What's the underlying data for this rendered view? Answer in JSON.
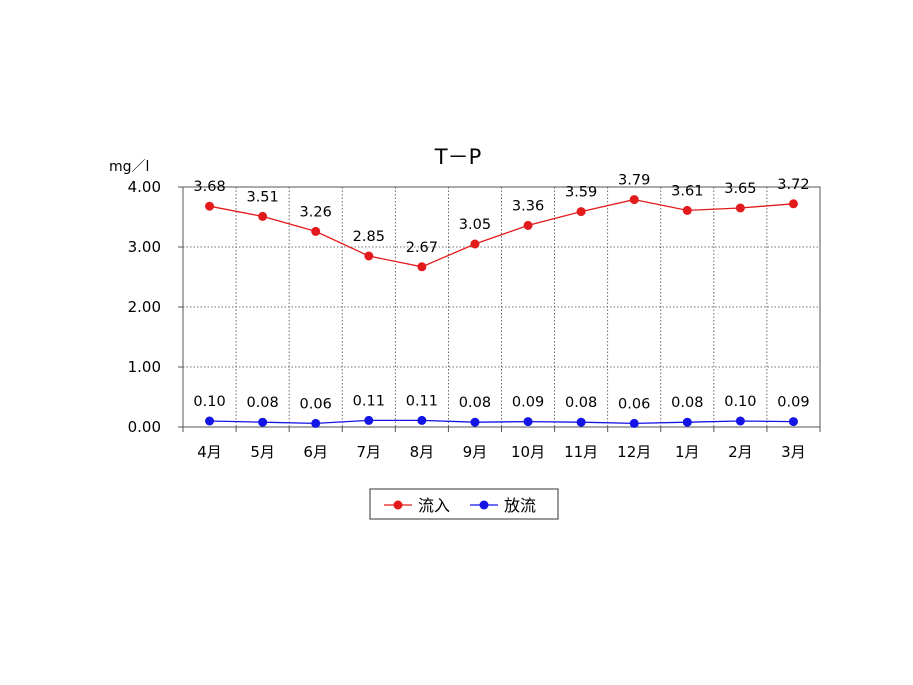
{
  "chart_data": {
    "type": "line",
    "title": "T－P",
    "unit_label": "mg／l",
    "categories": [
      "4月",
      "5月",
      "6月",
      "7月",
      "8月",
      "9月",
      "10月",
      "11月",
      "12月",
      "1月",
      "2月",
      "3月"
    ],
    "y_ticks": [
      "0.00",
      "1.00",
      "2.00",
      "3.00",
      "4.00"
    ],
    "ylim": [
      0,
      4
    ],
    "grid": true,
    "legend_position": "bottom",
    "series": [
      {
        "name": "流入",
        "color": "#e31a1c",
        "values": [
          3.68,
          3.51,
          3.26,
          2.85,
          2.67,
          3.05,
          3.36,
          3.59,
          3.79,
          3.61,
          3.65,
          3.72
        ],
        "labels": [
          "3.68",
          "3.51",
          "3.26",
          "2.85",
          "2.67",
          "3.05",
          "3.36",
          "3.59",
          "3.79",
          "3.61",
          "3.65",
          "3.72"
        ]
      },
      {
        "name": "放流",
        "color": "#1414e6",
        "values": [
          0.1,
          0.08,
          0.06,
          0.11,
          0.11,
          0.08,
          0.09,
          0.08,
          0.06,
          0.08,
          0.1,
          0.09
        ],
        "labels": [
          "0.10",
          "0.08",
          "0.06",
          "0.11",
          "0.11",
          "0.08",
          "0.09",
          "0.08",
          "0.06",
          "0.08",
          "0.10",
          "0.09"
        ]
      }
    ]
  }
}
